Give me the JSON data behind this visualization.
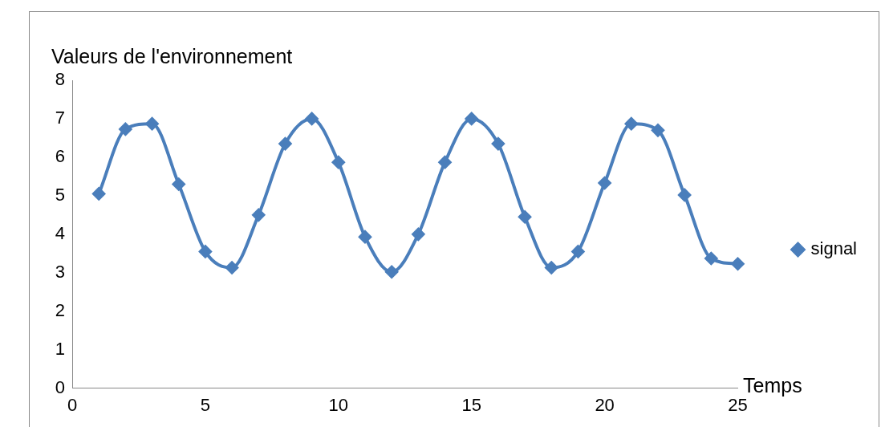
{
  "chart_data": {
    "type": "line",
    "ylabel": "Valeurs de l'environnement",
    "xlabel": "Temps",
    "x": [
      1,
      2,
      3,
      4,
      5,
      6,
      7,
      8,
      9,
      10,
      11,
      12,
      13,
      14,
      15,
      16,
      17,
      18,
      19,
      20,
      21,
      22,
      23,
      24,
      25
    ],
    "series": [
      {
        "name": "signal",
        "color": "#4a7ebb",
        "values": [
          5.05,
          6.73,
          6.87,
          5.3,
          3.55,
          3.13,
          4.5,
          6.35,
          7.0,
          5.87,
          3.93,
          3.02,
          4.0,
          5.87,
          7.0,
          6.35,
          4.45,
          3.13,
          3.55,
          5.33,
          6.87,
          6.7,
          5.02,
          3.37,
          3.23
        ]
      }
    ],
    "xlim": [
      0,
      25
    ],
    "xticks": [
      0,
      5,
      10,
      15,
      20,
      25
    ],
    "ylim": [
      0,
      8
    ],
    "yticks": [
      0,
      1,
      2,
      3,
      4,
      5,
      6,
      7,
      8
    ],
    "grid": false,
    "legend": "right",
    "marker": "diamond",
    "line_style": "solid"
  }
}
